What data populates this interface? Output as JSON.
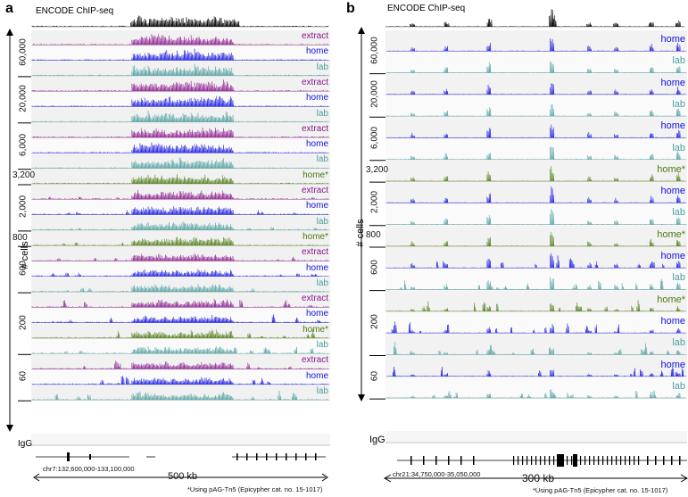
{
  "colors": {
    "extract": "#8a158c",
    "home": "#1010e0",
    "lab": "#4e9e9e",
    "homeStar": "#4c7a12",
    "encode": "#000000",
    "igg": "#777777"
  },
  "panelA": {
    "letter": "a",
    "encode_label": "ENCODE ChIP-seq",
    "axis_title": "# cells",
    "igg_label": "IgG",
    "coords": "chr7:132,600,000-133,100,000",
    "scale": "500 kb",
    "note": "*Using pAG-Tn5 (Epicypher cat. no. 15-1017)",
    "groups": [
      {
        "count": "60,000",
        "count_rotated": true,
        "tracks": [
          "extract",
          "home",
          "lab"
        ]
      },
      {
        "count": "20,000",
        "count_rotated": true,
        "tracks": [
          "extract",
          "home",
          "lab"
        ]
      },
      {
        "count": "6,000",
        "count_rotated": true,
        "tracks": [
          "extract",
          "home",
          "lab"
        ]
      },
      {
        "count": "3,200",
        "count_rotated": false,
        "tracks": [
          "homeStar"
        ]
      },
      {
        "count": "2,000",
        "count_rotated": true,
        "tracks": [
          "extract",
          "home",
          "lab"
        ]
      },
      {
        "count": "800",
        "count_rotated": false,
        "tracks": [
          "homeStar"
        ]
      },
      {
        "count": "600",
        "count_rotated": true,
        "tracks": [
          "extract",
          "home",
          "lab"
        ]
      },
      {
        "count": "200",
        "count_rotated": true,
        "tracks": [
          "extract",
          "home",
          "homeStar",
          "lab"
        ]
      },
      {
        "count": "60",
        "count_rotated": true,
        "tracks": [
          "extract",
          "home",
          "lab"
        ]
      }
    ],
    "track_labels": {
      "extract": "extract",
      "home": "home",
      "lab": "lab",
      "homeStar": "home*"
    }
  },
  "panelB": {
    "letter": "b",
    "encode_label": "ENCODE ChIP-seq",
    "axis_title": "# cells",
    "igg_label": "IgG",
    "coords": "chr21:34,750,000-35,050,000",
    "scale": "300 kb",
    "note": "*Using pAG-Tn5 (Epicypher cat. no. 15-1017)",
    "groups": [
      {
        "count": "60,000",
        "count_rotated": true,
        "tracks": [
          "home",
          "lab"
        ]
      },
      {
        "count": "20,000",
        "count_rotated": true,
        "tracks": [
          "home",
          "lab"
        ]
      },
      {
        "count": "6,000",
        "count_rotated": true,
        "tracks": [
          "home",
          "lab"
        ]
      },
      {
        "count": "3,200",
        "count_rotated": false,
        "tracks": [
          "homeStar"
        ]
      },
      {
        "count": "2,000",
        "count_rotated": true,
        "tracks": [
          "home",
          "lab"
        ]
      },
      {
        "count": "800",
        "count_rotated": false,
        "tracks": [
          "homeStar"
        ]
      },
      {
        "count": "600",
        "count_rotated": true,
        "tracks": [
          "home",
          "lab"
        ]
      },
      {
        "count": "200",
        "count_rotated": true,
        "tracks": [
          "homeStar",
          "home",
          "lab"
        ]
      },
      {
        "count": "60",
        "count_rotated": true,
        "tracks": [
          "home",
          "lab"
        ]
      }
    ],
    "track_labels": {
      "home": "home",
      "lab": "lab",
      "homeStar": "home*"
    }
  }
}
